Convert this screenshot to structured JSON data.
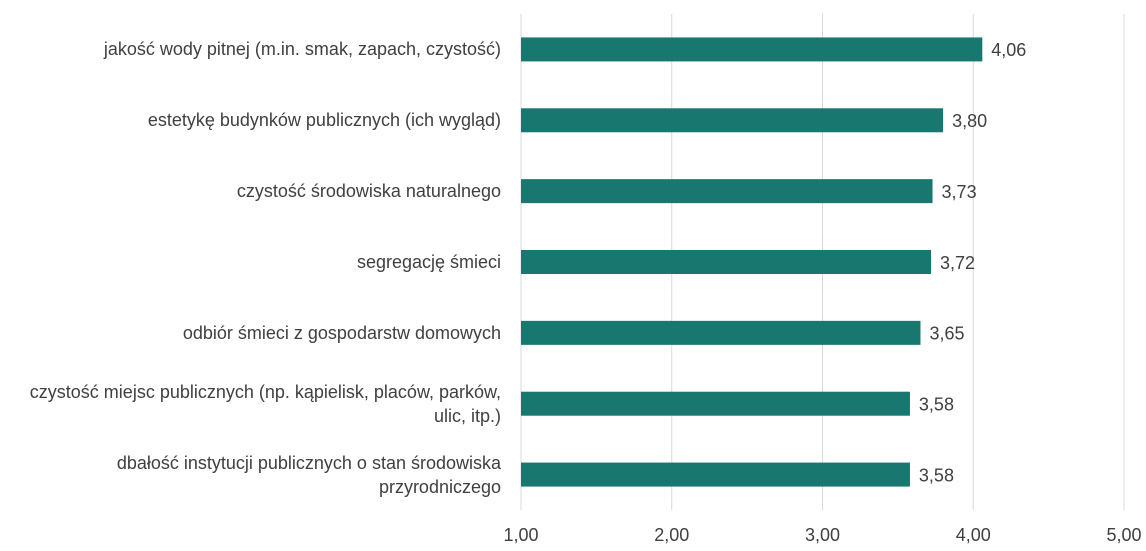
{
  "chart_data": {
    "type": "bar",
    "orientation": "horizontal",
    "categories": [
      "jakość wody pitnej (m.in. smak, zapach, czystość)",
      "estetykę budynków publicznych (ich wygląd)",
      "czystość środowiska naturalnego",
      "segregację śmieci",
      "odbiór śmieci z gospodarstw domowych",
      "czystość miejsc publicznych (np. kąpielisk, placów, parków, ulic, itp.)",
      "dbałość instytucji publicznych o stan środowiska przyrodniczego"
    ],
    "values": [
      4.06,
      3.8,
      3.73,
      3.72,
      3.65,
      3.58,
      3.58
    ],
    "value_labels": [
      "4,06",
      "3,80",
      "3,73",
      "3,72",
      "3,65",
      "3,58",
      "3,58"
    ],
    "color": "#18776f",
    "xlim": [
      1,
      5
    ],
    "xticks": [
      {
        "value": 1,
        "label": "1,00"
      },
      {
        "value": 2,
        "label": "2,00"
      },
      {
        "value": 3,
        "label": "3,00"
      },
      {
        "value": 4,
        "label": "4,00"
      },
      {
        "value": 5,
        "label": "5,00"
      }
    ],
    "grid": true
  }
}
